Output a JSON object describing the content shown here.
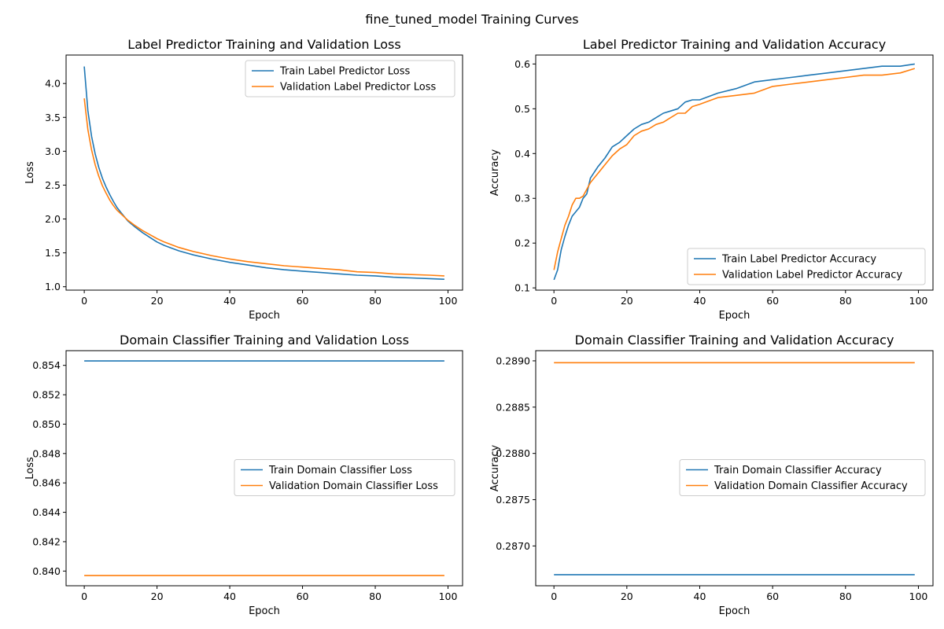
{
  "figure": {
    "suptitle": "fine_tuned_model Training Curves"
  },
  "colors": {
    "train": "#1f77b4",
    "validation": "#ff7f0e"
  },
  "chart_data": [
    {
      "id": "label-loss",
      "type": "line",
      "title": "Label Predictor Training and Validation Loss",
      "xlabel": "Epoch",
      "ylabel": "Loss",
      "xlim": [
        -5,
        104
      ],
      "ylim": [
        0.95,
        4.42
      ],
      "xticks": [
        0,
        20,
        40,
        60,
        80,
        100
      ],
      "yticks": [
        1.0,
        1.5,
        2.0,
        2.5,
        3.0,
        3.5,
        4.0
      ],
      "ytick_labels": [
        "1.0",
        "1.5",
        "2.0",
        "2.5",
        "3.0",
        "3.5",
        "4.0"
      ],
      "legend_loc": "upper right",
      "series": [
        {
          "name": "Train Label Predictor Loss",
          "color": "train",
          "x": [
            0,
            1,
            2,
            3,
            4,
            5,
            6,
            7,
            8,
            9,
            10,
            12,
            14,
            16,
            18,
            20,
            22,
            24,
            26,
            28,
            30,
            35,
            40,
            45,
            50,
            55,
            60,
            65,
            70,
            75,
            80,
            85,
            90,
            95,
            99
          ],
          "y": [
            4.25,
            3.6,
            3.22,
            2.96,
            2.76,
            2.6,
            2.47,
            2.36,
            2.26,
            2.17,
            2.1,
            1.97,
            1.88,
            1.8,
            1.73,
            1.66,
            1.61,
            1.57,
            1.53,
            1.5,
            1.47,
            1.41,
            1.36,
            1.32,
            1.28,
            1.25,
            1.23,
            1.21,
            1.19,
            1.17,
            1.16,
            1.14,
            1.13,
            1.12,
            1.11
          ]
        },
        {
          "name": "Validation Label Predictor Loss",
          "color": "validation",
          "x": [
            0,
            1,
            2,
            3,
            4,
            5,
            6,
            7,
            8,
            9,
            10,
            12,
            14,
            16,
            18,
            20,
            22,
            24,
            26,
            28,
            30,
            35,
            40,
            45,
            50,
            55,
            60,
            65,
            70,
            75,
            80,
            85,
            90,
            95,
            99
          ],
          "y": [
            3.78,
            3.32,
            3.02,
            2.8,
            2.63,
            2.49,
            2.38,
            2.28,
            2.2,
            2.13,
            2.08,
            1.98,
            1.9,
            1.83,
            1.77,
            1.71,
            1.66,
            1.62,
            1.58,
            1.55,
            1.52,
            1.46,
            1.41,
            1.37,
            1.34,
            1.31,
            1.29,
            1.27,
            1.25,
            1.22,
            1.21,
            1.19,
            1.18,
            1.17,
            1.16
          ]
        }
      ]
    },
    {
      "id": "label-accuracy",
      "type": "line",
      "title": "Label Predictor Training and Validation Accuracy",
      "xlabel": "Epoch",
      "ylabel": "Accuracy",
      "xlim": [
        -5,
        104
      ],
      "ylim": [
        0.095,
        0.62
      ],
      "xticks": [
        0,
        20,
        40,
        60,
        80,
        100
      ],
      "yticks": [
        0.1,
        0.2,
        0.3,
        0.4,
        0.5,
        0.6
      ],
      "ytick_labels": [
        "0.1",
        "0.2",
        "0.3",
        "0.4",
        "0.5",
        "0.6"
      ],
      "legend_loc": "lower right",
      "series": [
        {
          "name": "Train Label Predictor Accuracy",
          "color": "train",
          "x": [
            0,
            1,
            2,
            3,
            4,
            5,
            6,
            7,
            8,
            9,
            10,
            12,
            14,
            16,
            18,
            20,
            22,
            24,
            26,
            28,
            30,
            32,
            34,
            36,
            38,
            40,
            45,
            50,
            55,
            60,
            65,
            70,
            75,
            80,
            85,
            90,
            95,
            99
          ],
          "y": [
            0.118,
            0.14,
            0.185,
            0.215,
            0.24,
            0.26,
            0.27,
            0.28,
            0.3,
            0.31,
            0.345,
            0.37,
            0.39,
            0.415,
            0.425,
            0.44,
            0.455,
            0.465,
            0.47,
            0.48,
            0.49,
            0.495,
            0.5,
            0.515,
            0.52,
            0.52,
            0.535,
            0.545,
            0.56,
            0.565,
            0.57,
            0.575,
            0.58,
            0.585,
            0.59,
            0.595,
            0.595,
            0.6
          ]
        },
        {
          "name": "Validation Label Predictor Accuracy",
          "color": "validation",
          "x": [
            0,
            1,
            2,
            3,
            4,
            5,
            6,
            7,
            8,
            9,
            10,
            12,
            14,
            16,
            18,
            20,
            22,
            24,
            26,
            28,
            30,
            32,
            34,
            36,
            38,
            40,
            45,
            50,
            55,
            60,
            65,
            70,
            75,
            80,
            85,
            90,
            95,
            99
          ],
          "y": [
            0.14,
            0.18,
            0.21,
            0.24,
            0.26,
            0.285,
            0.3,
            0.3,
            0.305,
            0.32,
            0.335,
            0.355,
            0.375,
            0.395,
            0.41,
            0.42,
            0.44,
            0.45,
            0.455,
            0.465,
            0.47,
            0.48,
            0.49,
            0.49,
            0.505,
            0.51,
            0.525,
            0.53,
            0.535,
            0.55,
            0.555,
            0.56,
            0.565,
            0.57,
            0.575,
            0.575,
            0.58,
            0.59
          ]
        }
      ]
    },
    {
      "id": "domain-loss",
      "type": "line",
      "title": "Domain Classifier Training and Validation Loss",
      "xlabel": "Epoch",
      "ylabel": "Loss",
      "xlim": [
        -5,
        104
      ],
      "ylim": [
        0.839,
        0.855
      ],
      "xticks": [
        0,
        20,
        40,
        60,
        80,
        100
      ],
      "yticks": [
        0.84,
        0.842,
        0.844,
        0.846,
        0.848,
        0.85,
        0.852,
        0.854
      ],
      "ytick_labels": [
        "0.840",
        "0.842",
        "0.844",
        "0.846",
        "0.848",
        "0.850",
        "0.852",
        "0.854"
      ],
      "legend_loc": "center right",
      "series": [
        {
          "name": "Train Domain Classifier Loss",
          "color": "train",
          "x": [
            0,
            99
          ],
          "y": [
            0.8543,
            0.8543
          ]
        },
        {
          "name": "Validation Domain Classifier Loss",
          "color": "validation",
          "x": [
            0,
            99
          ],
          "y": [
            0.8397,
            0.8397
          ]
        }
      ]
    },
    {
      "id": "domain-accuracy",
      "type": "line",
      "title": "Domain Classifier Training and Validation Accuracy",
      "xlabel": "Epoch",
      "ylabel": "Accuracy",
      "xlim": [
        -5,
        104
      ],
      "ylim": [
        0.28657,
        0.28911
      ],
      "xticks": [
        0,
        20,
        40,
        60,
        80,
        100
      ],
      "yticks": [
        0.287,
        0.2875,
        0.288,
        0.2885,
        0.289
      ],
      "ytick_labels": [
        "0.2870",
        "0.2875",
        "0.2880",
        "0.2885",
        "0.2890"
      ],
      "legend_loc": "center right",
      "series": [
        {
          "name": "Train Domain Classifier Accuracy",
          "color": "train",
          "x": [
            0,
            99
          ],
          "y": [
            0.28669,
            0.28669
          ]
        },
        {
          "name": "Validation Domain Classifier Accuracy",
          "color": "validation",
          "x": [
            0,
            99
          ],
          "y": [
            0.28898,
            0.28898
          ]
        }
      ]
    }
  ]
}
